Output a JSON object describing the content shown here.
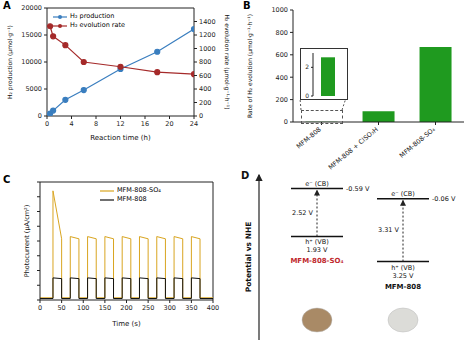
{
  "chart_data": [
    {
      "panel_label": "A",
      "type": "line",
      "x_label": "Reaction time (h)",
      "y_label": "H₂ production (μmol·g⁻¹)",
      "y2_label": "H₂ evolution rate (μmol·g⁻¹·h⁻¹)",
      "x": [
        0.5,
        1,
        3,
        6,
        12,
        18,
        24
      ],
      "series": [
        {
          "name": "H₂ production",
          "color": "#3a7ebf",
          "marker": "circle",
          "values": [
            450,
            1000,
            3000,
            4800,
            8700,
            11900,
            16100
          ]
        },
        {
          "name": "H₂ evolution rate",
          "color": "#a52a2a",
          "marker": "circle",
          "axis": "y2",
          "values": [
            1330,
            1180,
            1050,
            800,
            730,
            650,
            620
          ]
        }
      ],
      "xlim": [
        0,
        24
      ],
      "xticks": [
        0,
        4,
        8,
        12,
        16,
        20,
        24
      ],
      "ylim": [
        0,
        20000
      ],
      "yticks": [
        0,
        5000,
        10000,
        15000,
        20000
      ],
      "y2lim": [
        0,
        1600
      ],
      "y2ticks": [
        0,
        200,
        400,
        600,
        800,
        1000,
        1200,
        1400
      ],
      "legend": "upper left"
    },
    {
      "panel_label": "B",
      "type": "bar",
      "y_label": "Rate of H₂ evolution (μmol·g⁻¹·h⁻¹)",
      "categories": [
        "MFM-808",
        "MFM-808 + ClSO₃H",
        "MFM-808-SO₄"
      ],
      "values": [
        2.7,
        95,
        670
      ],
      "color": "#1f9a1f",
      "ylim": [
        0,
        1000
      ],
      "yticks": [
        0,
        200,
        400,
        600,
        800,
        1000
      ],
      "inset": {
        "values": [
          2.7
        ],
        "ylim": [
          0,
          3
        ],
        "yticks": [
          0,
          2
        ]
      }
    },
    {
      "panel_label": "C",
      "type": "line",
      "x_label": "Time (s)",
      "y_label": "Photocurrent (μA/cm²)",
      "x": [
        0,
        30,
        30,
        50,
        50,
        70,
        70,
        90,
        90,
        110,
        110,
        130,
        130,
        150,
        150,
        170,
        170,
        190,
        190,
        210,
        210,
        230,
        230,
        250,
        250,
        270,
        270,
        290,
        290,
        310,
        310,
        330,
        330,
        350,
        350,
        370,
        370,
        400
      ],
      "series": [
        {
          "name": "MFM-808-SO₄",
          "color": "#d9a520",
          "values": [
            0.3,
            0.3,
            14.8,
            8.3,
            0.3,
            0.3,
            8.6,
            8.3,
            0.3,
            0.3,
            8.6,
            8.3,
            0.3,
            0.3,
            8.6,
            8.3,
            0.3,
            0.3,
            8.6,
            8.3,
            0.3,
            0.3,
            8.6,
            8.3,
            0.3,
            0.3,
            8.6,
            8.3,
            0.3,
            0.3,
            8.6,
            8.3,
            0.3,
            0.3,
            8.6,
            8.3,
            0.3,
            0.3
          ]
        },
        {
          "name": "MFM-808",
          "color": "#111111",
          "values": [
            0.2,
            0.2,
            3.0,
            2.9,
            0.2,
            0.2,
            3.0,
            2.9,
            0.2,
            0.2,
            3.0,
            2.9,
            0.2,
            0.2,
            3.0,
            2.9,
            0.2,
            0.2,
            3.0,
            2.9,
            0.2,
            0.2,
            3.0,
            2.9,
            0.2,
            0.2,
            3.0,
            2.9,
            0.2,
            0.2,
            3.0,
            2.9,
            0.2,
            0.2,
            3.0,
            2.9,
            0.2,
            0.2
          ]
        }
      ],
      "xlim": [
        0,
        400
      ],
      "xticks": [
        0,
        50,
        100,
        150,
        200,
        250,
        300,
        350,
        400
      ],
      "ylim": [
        0,
        16
      ],
      "yticks": [
        0,
        2,
        4,
        6,
        8,
        10,
        12,
        14,
        16
      ],
      "tick_labels": "x",
      "legend": "upper left"
    }
  ],
  "band_diagram": {
    "panel_label": "D",
    "y_label": "Potential vs NHE",
    "materials": [
      {
        "name": "MFM-808-SO₄",
        "cb": {
          "value": -0.59,
          "label": "-0.59 V"
        },
        "vb": {
          "value": 1.93,
          "label": "1.93 V"
        },
        "gap": {
          "value": 2.52,
          "label": "2.52 V"
        },
        "cb_label": "e⁻ (CB)",
        "vb_label": "h⁺ (VB)"
      },
      {
        "name": "MFM-808",
        "cb": {
          "value": -0.06,
          "label": "-0.06 V"
        },
        "vb": {
          "value": 3.25,
          "label": "3.25 V"
        },
        "gap": {
          "value": 3.31,
          "label": "3.31 V"
        },
        "cb_label": "e⁻ (CB)",
        "vb_label": "h⁺ (VB)"
      }
    ]
  }
}
